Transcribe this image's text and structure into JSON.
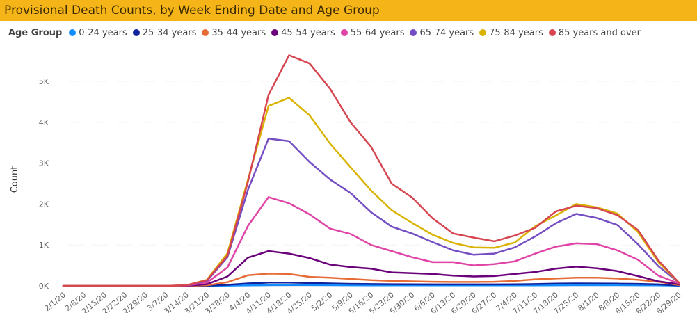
{
  "chart_data": {
    "type": "line",
    "title": "Provisional Death Counts, by Week Ending Date and Age Group",
    "xlabel": "",
    "ylabel": "Count",
    "legend_title": "Age Group",
    "legend_position": "top-left",
    "grid": true,
    "ylim": [
      0,
      5800
    ],
    "yticks": [
      {
        "value": 0,
        "label": "0K"
      },
      {
        "value": 1000,
        "label": "1K"
      },
      {
        "value": 2000,
        "label": "2K"
      },
      {
        "value": 3000,
        "label": "3K"
      },
      {
        "value": 4000,
        "label": "4K"
      },
      {
        "value": 5000,
        "label": "5K"
      }
    ],
    "categories": [
      "2/1/20",
      "2/8/20",
      "2/15/20",
      "2/22/20",
      "2/29/20",
      "3/7/20",
      "3/14/20",
      "3/21/20",
      "3/28/20",
      "4/4/20",
      "4/11/20",
      "4/18/20",
      "4/25/20",
      "5/2/20",
      "5/9/20",
      "5/16/20",
      "5/23/20",
      "5/30/20",
      "6/6/20",
      "6/13/20",
      "6/20/20",
      "6/27/20",
      "7/4/20",
      "7/11/20",
      "7/18/20",
      "7/25/20",
      "8/1/20",
      "8/8/20",
      "8/15/20",
      "8/22/20",
      "8/29/20"
    ],
    "series": [
      {
        "name": "0-24 years",
        "color": "#118dff",
        "values": [
          0,
          0,
          0,
          0,
          0,
          0,
          0,
          2,
          6,
          12,
          18,
          20,
          20,
          18,
          16,
          14,
          12,
          12,
          12,
          12,
          12,
          12,
          12,
          14,
          16,
          18,
          18,
          18,
          16,
          12,
          4
        ]
      },
      {
        "name": "25-34 years",
        "color": "#12239e",
        "values": [
          0,
          0,
          0,
          0,
          0,
          0,
          0,
          5,
          25,
          60,
          80,
          80,
          70,
          60,
          50,
          45,
          40,
          38,
          36,
          36,
          36,
          36,
          38,
          45,
          55,
          60,
          58,
          55,
          50,
          35,
          10
        ]
      },
      {
        "name": "35-44 years",
        "color": "#e66c37",
        "values": [
          0,
          0,
          0,
          0,
          0,
          0,
          2,
          15,
          90,
          260,
          300,
          290,
          220,
          200,
          170,
          140,
          120,
          110,
          100,
          95,
          95,
          100,
          120,
          160,
          180,
          200,
          200,
          180,
          150,
          100,
          20
        ]
      },
      {
        "name": "45-54 years",
        "color": "#6b007b",
        "values": [
          0,
          0,
          0,
          0,
          0,
          0,
          5,
          40,
          230,
          690,
          850,
          790,
          680,
          520,
          460,
          420,
          330,
          310,
          290,
          250,
          230,
          240,
          290,
          340,
          420,
          470,
          430,
          360,
          240,
          110,
          40
        ]
      },
      {
        "name": "55-64 years",
        "color": "#e044a7",
        "values": [
          0,
          0,
          0,
          0,
          0,
          0,
          10,
          80,
          450,
          1470,
          2170,
          2020,
          1750,
          1400,
          1270,
          1000,
          850,
          700,
          580,
          580,
          500,
          530,
          600,
          790,
          960,
          1040,
          1020,
          870,
          640,
          250,
          60
        ]
      },
      {
        "name": "65-74 years",
        "color": "#744ec2",
        "values": [
          0,
          0,
          0,
          0,
          0,
          0,
          15,
          120,
          700,
          2350,
          3600,
          3540,
          3030,
          2600,
          2270,
          1800,
          1450,
          1280,
          1070,
          870,
          760,
          790,
          940,
          1210,
          1530,
          1760,
          1660,
          1490,
          1020,
          480,
          80
        ]
      },
      {
        "name": "75-84 years",
        "color": "#d9b300",
        "values": [
          0,
          0,
          0,
          0,
          0,
          0,
          15,
          150,
          800,
          2600,
          4400,
          4600,
          4170,
          3480,
          2900,
          2330,
          1850,
          1540,
          1250,
          1050,
          940,
          930,
          1060,
          1460,
          1720,
          2000,
          1920,
          1770,
          1320,
          580,
          80
        ]
      },
      {
        "name": "85 years and over",
        "color": "#d64550",
        "values": [
          0,
          0,
          0,
          0,
          0,
          0,
          15,
          140,
          740,
          2550,
          4670,
          5640,
          5440,
          4820,
          4000,
          3400,
          2500,
          2160,
          1650,
          1280,
          1180,
          1090,
          1230,
          1420,
          1820,
          1960,
          1900,
          1730,
          1370,
          620,
          80
        ]
      }
    ]
  }
}
